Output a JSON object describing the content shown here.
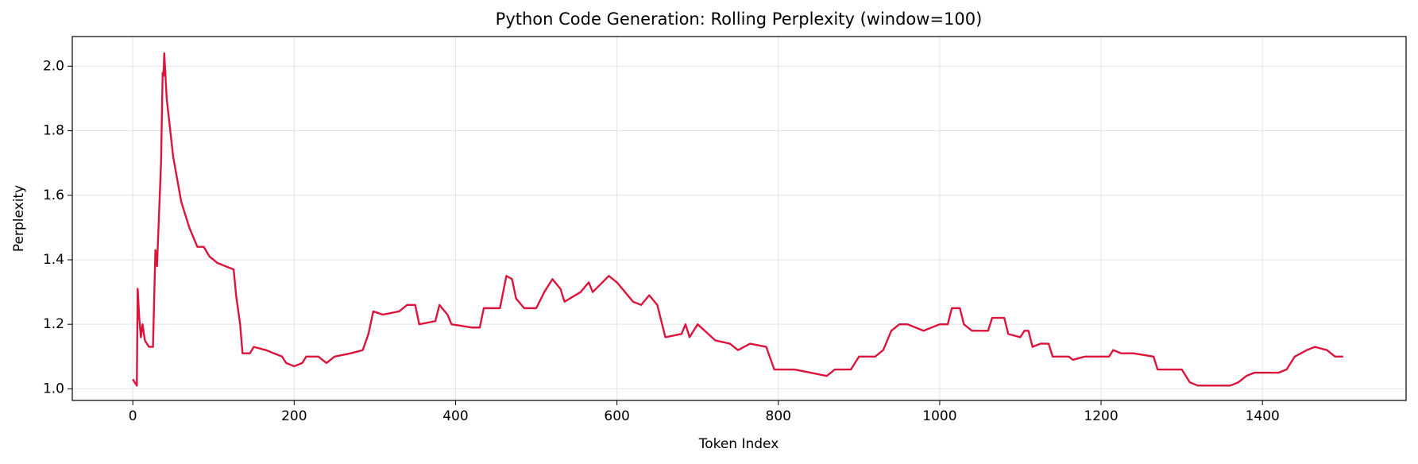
{
  "chart_data": {
    "type": "line",
    "title": "Python Code Generation: Rolling Perplexity (window=100)",
    "x_label": "Token Index",
    "y_label": "Perplexity",
    "xlim": [
      -75,
      1578
    ],
    "ylim": [
      0.964,
      2.092
    ],
    "xticks": [
      0,
      200,
      400,
      600,
      800,
      1000,
      1200,
      1400
    ],
    "yticks": [
      {
        "value": 1.0,
        "label": "1.0"
      },
      {
        "value": 1.2,
        "label": "1.2"
      },
      {
        "value": 1.4,
        "label": "1.4"
      },
      {
        "value": 1.6,
        "label": "1.6"
      },
      {
        "value": 1.8,
        "label": "1.8"
      },
      {
        "value": 2.0,
        "label": "2.0"
      }
    ],
    "grid": true,
    "x": [
      0,
      5,
      6,
      8,
      10,
      12,
      15,
      20,
      25,
      28,
      30,
      32,
      35,
      37,
      38,
      39,
      42,
      50,
      60,
      70,
      80,
      88,
      95,
      100,
      105,
      115,
      125,
      128,
      133,
      136,
      145,
      150,
      165,
      175,
      185,
      190,
      200,
      210,
      215,
      230,
      240,
      250,
      270,
      285,
      292,
      298,
      310,
      330,
      340,
      350,
      355,
      375,
      380,
      390,
      395,
      420,
      430,
      435,
      455,
      463,
      470,
      475,
      485,
      500,
      510,
      520,
      530,
      535,
      555,
      565,
      570,
      590,
      600,
      610,
      620,
      630,
      640,
      650,
      660,
      680,
      685,
      690,
      700,
      722,
      740,
      750,
      765,
      785,
      795,
      820,
      840,
      860,
      870,
      890,
      900,
      920,
      930,
      940,
      950,
      960,
      980,
      1000,
      1010,
      1015,
      1025,
      1030,
      1040,
      1060,
      1065,
      1080,
      1085,
      1100,
      1105,
      1110,
      1115,
      1125,
      1135,
      1140,
      1160,
      1165,
      1180,
      1210,
      1215,
      1225,
      1240,
      1265,
      1270,
      1300,
      1305,
      1310,
      1320,
      1360,
      1370,
      1380,
      1390,
      1410,
      1420,
      1430,
      1440,
      1455,
      1465,
      1480,
      1490,
      1500
    ],
    "series": [
      {
        "name": "Rolling Perplexity",
        "color": "#dc143c",
        "values": [
          1.03,
          1.01,
          1.31,
          1.22,
          1.16,
          1.2,
          1.15,
          1.13,
          1.13,
          1.43,
          1.38,
          1.51,
          1.7,
          1.98,
          1.97,
          2.04,
          1.9,
          1.72,
          1.58,
          1.5,
          1.44,
          1.44,
          1.41,
          1.4,
          1.39,
          1.38,
          1.37,
          1.29,
          1.2,
          1.11,
          1.11,
          1.13,
          1.12,
          1.11,
          1.1,
          1.08,
          1.07,
          1.08,
          1.1,
          1.1,
          1.08,
          1.1,
          1.11,
          1.12,
          1.17,
          1.24,
          1.23,
          1.24,
          1.26,
          1.26,
          1.2,
          1.21,
          1.26,
          1.23,
          1.2,
          1.19,
          1.19,
          1.25,
          1.25,
          1.35,
          1.34,
          1.28,
          1.25,
          1.25,
          1.3,
          1.34,
          1.31,
          1.27,
          1.3,
          1.33,
          1.3,
          1.35,
          1.33,
          1.3,
          1.27,
          1.26,
          1.29,
          1.26,
          1.16,
          1.17,
          1.2,
          1.16,
          1.2,
          1.15,
          1.14,
          1.12,
          1.14,
          1.13,
          1.06,
          1.06,
          1.05,
          1.04,
          1.06,
          1.06,
          1.1,
          1.1,
          1.12,
          1.18,
          1.2,
          1.2,
          1.18,
          1.2,
          1.2,
          1.25,
          1.25,
          1.2,
          1.18,
          1.18,
          1.22,
          1.22,
          1.17,
          1.16,
          1.18,
          1.18,
          1.13,
          1.14,
          1.14,
          1.1,
          1.1,
          1.09,
          1.1,
          1.1,
          1.12,
          1.11,
          1.11,
          1.1,
          1.06,
          1.06,
          1.04,
          1.02,
          1.01,
          1.01,
          1.02,
          1.04,
          1.05,
          1.05,
          1.05,
          1.06,
          1.1,
          1.12,
          1.13,
          1.12,
          1.1,
          1.1
        ]
      }
    ]
  }
}
